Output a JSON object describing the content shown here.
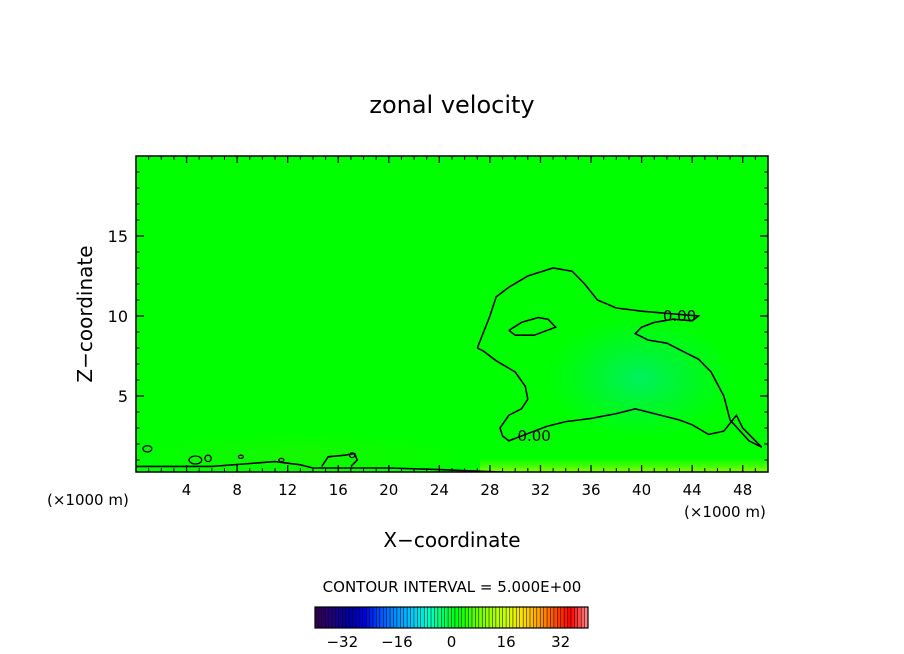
{
  "chart_data": {
    "type": "contour",
    "title": "zonal velocity",
    "xlabel": "X−coordinate",
    "ylabel": "Z−coordinate",
    "x_unit_left": "(×1000 m)",
    "x_unit_right": "(×1000 m)",
    "xlim": [
      0,
      50
    ],
    "ylim": [
      0.25,
      20
    ],
    "x_ticks": [
      4,
      8,
      12,
      16,
      20,
      24,
      28,
      32,
      36,
      40,
      44,
      48
    ],
    "x_tick_labels": [
      "4",
      "8",
      "12",
      "16",
      "20",
      "24",
      "28",
      "32",
      "36",
      "40",
      "44",
      "48"
    ],
    "y_ticks": [
      5,
      10,
      15
    ],
    "y_tick_labels": [
      "5",
      "10",
      "15"
    ],
    "contour_interval_text": "CONTOUR INTERVAL = 5.000E+00",
    "contour_interval": 5.0,
    "contour_labels": [
      {
        "text": "0.00",
        "x": 43.0,
        "z": 10.0
      },
      {
        "text": "0.00",
        "x": 31.5,
        "z": 2.5
      }
    ],
    "zero_contours": [
      {
        "name": "main",
        "points": [
          [
            27,
            8
          ],
          [
            27.5,
            9
          ],
          [
            28,
            10
          ],
          [
            28.5,
            11.2
          ],
          [
            29.5,
            11.8
          ],
          [
            31,
            12.5
          ],
          [
            33,
            13
          ],
          [
            34.5,
            12.8
          ],
          [
            35.5,
            12
          ],
          [
            36.5,
            11
          ],
          [
            38,
            10.5
          ],
          [
            40,
            10.3
          ],
          [
            41.5,
            10.2
          ],
          [
            43,
            10.1
          ],
          [
            44.5,
            10
          ],
          [
            44,
            9.7
          ],
          [
            42.5,
            9.8
          ],
          [
            41,
            9.6
          ],
          [
            40,
            9.3
          ],
          [
            39.5,
            8.9
          ],
          [
            40.5,
            8.5
          ],
          [
            42,
            8.3
          ],
          [
            43.5,
            7.7
          ],
          [
            44.5,
            7.3
          ],
          [
            45.5,
            6.5
          ],
          [
            46.5,
            5
          ],
          [
            47,
            3.5
          ],
          [
            48.5,
            2.2
          ],
          [
            49.5,
            1.8
          ],
          [
            48,
            3
          ],
          [
            47.5,
            3.8
          ],
          [
            46.5,
            2.8
          ],
          [
            45.3,
            2.6
          ],
          [
            44,
            3.2
          ],
          [
            43,
            3.5
          ],
          [
            41,
            3.9
          ],
          [
            39.5,
            4.2
          ],
          [
            38,
            3.9
          ],
          [
            36,
            3.6
          ],
          [
            34,
            3.4
          ],
          [
            32.5,
            3.1
          ],
          [
            30.5,
            2.5
          ],
          [
            29.5,
            2.2
          ],
          [
            29,
            2.5
          ],
          [
            28.8,
            3
          ],
          [
            29.5,
            3.8
          ],
          [
            30.5,
            4.2
          ],
          [
            31,
            4.8
          ],
          [
            30.8,
            5.6
          ],
          [
            30,
            6.5
          ],
          [
            28.5,
            7.2
          ],
          [
            27.5,
            7.8
          ],
          [
            27,
            8
          ]
        ]
      },
      {
        "name": "inner",
        "points": [
          [
            29.5,
            9.1
          ],
          [
            30.5,
            9.6
          ],
          [
            31.8,
            9.9
          ],
          [
            32.6,
            9.8
          ],
          [
            33.2,
            9.3
          ],
          [
            31.5,
            8.8
          ],
          [
            30,
            8.8
          ],
          [
            29.5,
            9.1
          ]
        ]
      },
      {
        "name": "bottom",
        "points": [
          [
            0,
            0.6
          ],
          [
            6,
            0.6
          ],
          [
            11,
            0.9
          ],
          [
            13,
            0.7
          ],
          [
            14,
            0.5
          ],
          [
            15,
            0.5
          ],
          [
            17,
            0.5
          ],
          [
            20,
            0.5
          ],
          [
            24,
            0.4
          ],
          [
            27,
            0.3
          ],
          [
            29,
            0.25
          ]
        ]
      },
      {
        "name": "bump",
        "points": [
          [
            14.7,
            0.6
          ],
          [
            15.2,
            1.2
          ],
          [
            16.5,
            1.3
          ],
          [
            17.3,
            1.4
          ],
          [
            17.5,
            1.0
          ],
          [
            17,
            0.6
          ]
        ]
      }
    ],
    "colorbar": {
      "ticks": [
        -32,
        -16,
        0,
        16,
        32
      ],
      "tick_labels": [
        "−32",
        "−16",
        "0",
        "16",
        "32"
      ],
      "range": [
        -40,
        40
      ],
      "colors": [
        "#300050",
        "#200080",
        "#0000a0",
        "#0000e0",
        "#0050ff",
        "#0090ff",
        "#00c8ff",
        "#00ffd0",
        "#00ff60",
        "#00ff00",
        "#60ff00",
        "#a0ff00",
        "#d0ff00",
        "#ffe000",
        "#ffa000",
        "#ff5000",
        "#ff0000",
        "#ff8080"
      ]
    }
  }
}
